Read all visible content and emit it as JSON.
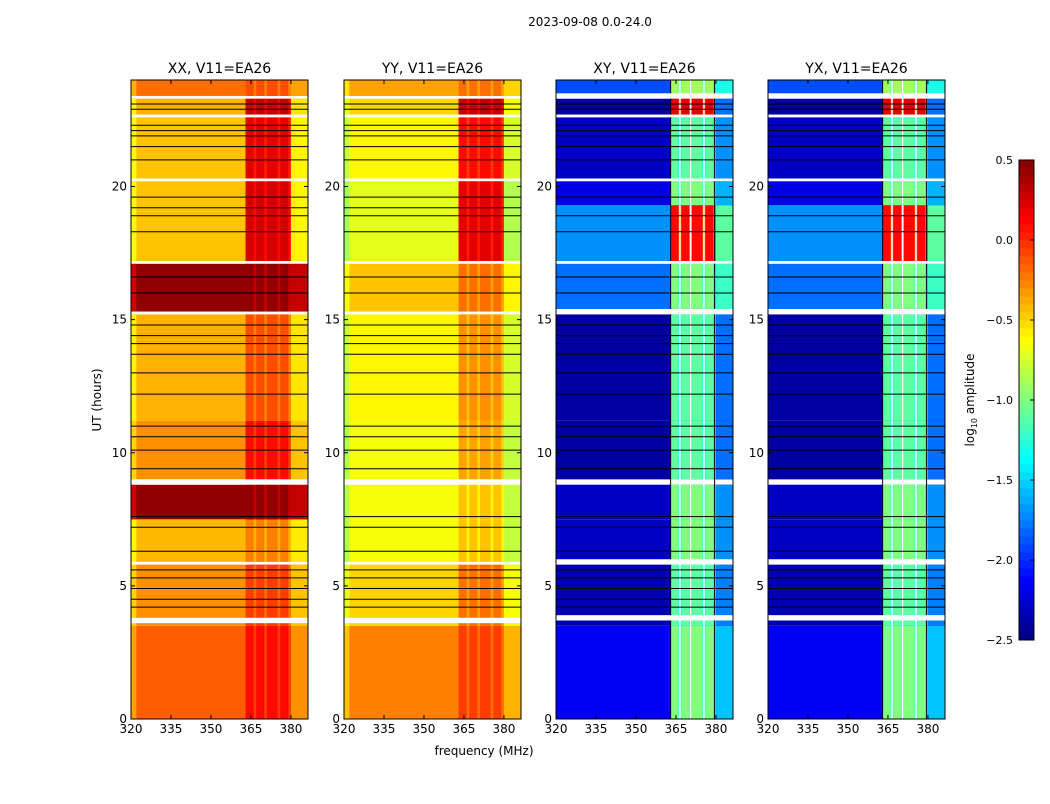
{
  "chart_data": {
    "type": "heatmap",
    "suptitle": "2023-09-08 0.0-24.0",
    "xlabel": "frequency (MHz)",
    "ylabel": "UT (hours)",
    "xlim": [
      320,
      386.4
    ],
    "ylim": [
      0,
      24
    ],
    "xticks": [
      "320",
      "335",
      "350",
      "365",
      "380"
    ],
    "xtick_values": [
      320,
      335,
      350,
      365,
      380
    ],
    "yticks": [
      "0",
      "5",
      "10",
      "15",
      "20"
    ],
    "ytick_values": [
      0,
      5,
      10,
      15,
      20
    ],
    "channel_bands_mhz": [
      [
        363,
        366
      ],
      [
        367,
        370
      ],
      [
        371,
        375
      ],
      [
        376,
        379
      ]
    ],
    "colorbar": {
      "label": "log10 amplitude",
      "label_base": "log",
      "label_sub": "10",
      "label_rest": " amplitude",
      "range": [
        -2.5,
        0.5
      ],
      "ticks": [
        "0.5",
        "0.0",
        "−0.5",
        "−1.0",
        "−1.5",
        "−2.0",
        "−2.5"
      ],
      "tick_values": [
        0.5,
        0,
        -0.5,
        -1,
        -1.5,
        -2,
        -2.5
      ]
    },
    "panels": [
      {
        "title": "XX, V11=EA26",
        "segments": [
          [
            0,
            3.5,
            -0.15,
            0.1
          ],
          [
            3.5,
            5.8,
            -0.3,
            -0.05
          ],
          [
            5.9,
            7.5,
            -0.42,
            -0.25
          ],
          [
            7.5,
            8.8,
            0.45,
            0.45
          ],
          [
            9,
            11.2,
            -0.3,
            0.1
          ],
          [
            11.2,
            15.2,
            -0.4,
            -0.1
          ],
          [
            15.3,
            17.1,
            0.45,
            0.45
          ],
          [
            17.2,
            20.2,
            -0.45,
            0.25
          ],
          [
            20.3,
            22.6,
            -0.45,
            0.2
          ],
          [
            22.7,
            23.3,
            -0.4,
            0.3
          ],
          [
            23.4,
            24,
            -0.2,
            -0.1
          ]
        ],
        "gaps": [
          [
            3.6,
            3.8
          ],
          [
            5.8,
            5.9
          ],
          [
            8.8,
            9.0
          ],
          [
            15.2,
            15.3
          ],
          [
            17.1,
            17.2
          ],
          [
            20.2,
            20.3
          ],
          [
            22.6,
            22.7
          ],
          [
            23.3,
            23.4
          ]
        ],
        "lines": [
          4.2,
          4.5,
          4.9,
          5.3,
          5.6,
          6.3,
          7.2,
          7.6,
          9.4,
          10.1,
          10.6,
          11.0,
          12.2,
          13.0,
          13.7,
          14.1,
          14.4,
          14.8,
          16.0,
          16.6,
          18.3,
          18.9,
          19.2,
          19.6,
          21.0,
          21.5,
          21.9,
          22.1,
          22.3,
          22.9,
          23.1
        ]
      },
      {
        "title": "YY, V11=EA26",
        "segments": [
          [
            0,
            3.5,
            -0.25,
            -0.05
          ],
          [
            3.5,
            5.8,
            -0.5,
            -0.2
          ],
          [
            5.9,
            7.5,
            -0.65,
            -0.45
          ],
          [
            7.5,
            8.8,
            -0.65,
            -0.45
          ],
          [
            9,
            11.2,
            -0.65,
            -0.35
          ],
          [
            11.2,
            15.2,
            -0.6,
            -0.3
          ],
          [
            15.3,
            17.1,
            -0.45,
            -0.2
          ],
          [
            17.2,
            20.2,
            -0.7,
            0.2
          ],
          [
            20.3,
            22.6,
            -0.6,
            0.1
          ],
          [
            22.7,
            23.3,
            -0.5,
            0.3
          ],
          [
            23.4,
            24,
            -0.35,
            -0.2
          ]
        ],
        "gaps": [
          [
            3.6,
            3.8
          ],
          [
            5.8,
            5.9
          ],
          [
            8.8,
            9.0
          ],
          [
            15.2,
            15.3
          ],
          [
            17.1,
            17.2
          ],
          [
            20.2,
            20.3
          ],
          [
            22.6,
            22.7
          ],
          [
            23.3,
            23.4
          ]
        ],
        "lines": [
          4.2,
          4.5,
          4.9,
          5.3,
          5.6,
          6.3,
          7.2,
          7.6,
          9.4,
          10.1,
          10.6,
          11.0,
          12.2,
          13.0,
          13.7,
          14.1,
          14.4,
          14.8,
          16.0,
          16.6,
          18.3,
          18.9,
          19.2,
          19.6,
          21.0,
          21.5,
          21.9,
          22.1,
          22.3,
          22.9,
          23.1
        ]
      },
      {
        "title": "XY, V11=EA26",
        "segments": [
          [
            0,
            3.5,
            -2.15,
            -1.0
          ],
          [
            3.5,
            5.8,
            -2.35,
            -1.1
          ],
          [
            5.9,
            7.5,
            -2.3,
            -1.0
          ],
          [
            7.5,
            8.8,
            -2.3,
            -1.0
          ],
          [
            9,
            11.2,
            -2.4,
            -1.1
          ],
          [
            11.2,
            15.2,
            -2.4,
            -1.1
          ],
          [
            15.3,
            17.1,
            -1.8,
            -1.0
          ],
          [
            17.2,
            19.3,
            -1.7,
            0.1
          ],
          [
            19.3,
            20.2,
            -2.2,
            -1.0
          ],
          [
            20.3,
            22.6,
            -2.3,
            -1.1
          ],
          [
            22.7,
            23.3,
            -2.4,
            0.2
          ],
          [
            23.4,
            24,
            -1.9,
            -0.9
          ]
        ],
        "gaps": [
          [
            3.7,
            3.9
          ],
          [
            5.8,
            6.0
          ],
          [
            15.2,
            15.4
          ],
          [
            17.1,
            17.2
          ],
          [
            20.2,
            20.3
          ],
          [
            22.6,
            22.7
          ],
          [
            23.3,
            23.5
          ]
        ],
        "lines": [
          4.2,
          4.5,
          4.9,
          5.3,
          5.6,
          6.3,
          7.2,
          7.6,
          9.4,
          10.1,
          10.6,
          11.0,
          12.2,
          13.0,
          13.7,
          14.1,
          14.4,
          14.8,
          16.0,
          16.6,
          18.3,
          18.9,
          19.6,
          21.0,
          21.5,
          21.9,
          22.1,
          22.3,
          22.9,
          23.1
        ]
      },
      {
        "title": "YX, V11=EA26",
        "segments": [
          [
            0,
            3.5,
            -2.15,
            -1.0
          ],
          [
            3.5,
            5.8,
            -2.35,
            -1.1
          ],
          [
            5.9,
            7.5,
            -2.3,
            -1.0
          ],
          [
            7.5,
            8.8,
            -2.3,
            -1.0
          ],
          [
            9,
            11.2,
            -2.4,
            -1.1
          ],
          [
            11.2,
            15.2,
            -2.4,
            -1.1
          ],
          [
            15.3,
            17.1,
            -1.8,
            -1.0
          ],
          [
            17.2,
            19.3,
            -1.7,
            0.1
          ],
          [
            19.3,
            20.2,
            -2.2,
            -1.0
          ],
          [
            20.3,
            22.6,
            -2.3,
            -1.1
          ],
          [
            22.7,
            23.3,
            -2.4,
            0.2
          ],
          [
            23.4,
            24,
            -1.9,
            -0.9
          ]
        ],
        "gaps": [
          [
            3.7,
            3.9
          ],
          [
            5.8,
            6.0
          ],
          [
            15.2,
            15.4
          ],
          [
            17.1,
            17.2
          ],
          [
            20.2,
            20.3
          ],
          [
            22.6,
            22.7
          ],
          [
            23.3,
            23.5
          ]
        ],
        "lines": [
          4.2,
          4.5,
          4.9,
          5.3,
          5.6,
          6.3,
          7.2,
          7.6,
          9.4,
          10.1,
          10.6,
          11.0,
          12.2,
          13.0,
          13.7,
          14.1,
          14.4,
          14.8,
          16.0,
          16.6,
          18.3,
          18.9,
          19.6,
          21.0,
          21.5,
          21.9,
          22.1,
          22.3,
          22.9,
          23.1
        ]
      }
    ]
  }
}
